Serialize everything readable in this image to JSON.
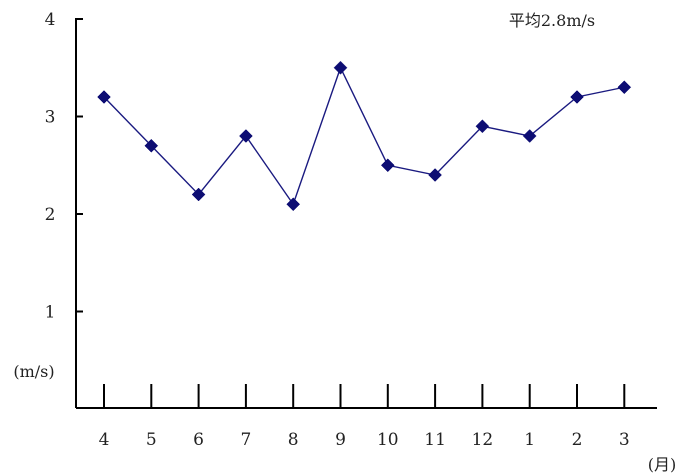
{
  "chart_data": {
    "type": "line",
    "categories": [
      "4",
      "5",
      "6",
      "7",
      "8",
      "9",
      "10",
      "11",
      "12",
      "1",
      "2",
      "3"
    ],
    "series": [
      {
        "values": [
          3.2,
          2.7,
          2.2,
          2.8,
          2.1,
          3.5,
          2.5,
          2.4,
          2.9,
          2.8,
          3.2,
          3.3
        ]
      }
    ],
    "ylim": [
      0,
      4
    ],
    "yticks": [
      "1",
      "2",
      "3",
      "4"
    ],
    "ylabel": "(m/s)",
    "xlabel": "(月)",
    "annotation": "平均2.8m/s",
    "grid": false,
    "colors": {
      "line": "#1a1a80",
      "marker": "#0d0d73",
      "axis": "#000000"
    }
  }
}
